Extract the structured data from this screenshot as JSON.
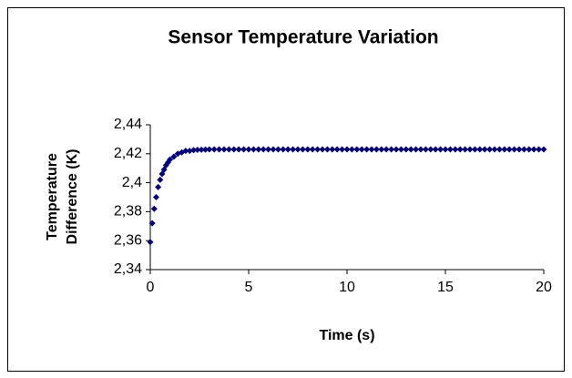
{
  "chart_data": {
    "type": "scatter",
    "title": "Sensor Temperature Variation",
    "xlabel": "Time (s)",
    "ylabel": [
      "Temperature",
      "Difference (K)"
    ],
    "series": [
      {
        "color": "#000080",
        "x": [
          0,
          0.1,
          0.2,
          0.3,
          0.4,
          0.5,
          0.6,
          0.7,
          0.8,
          0.9,
          1.0,
          1.2,
          1.4,
          1.6,
          1.8,
          2.0,
          2.2,
          2.4,
          2.6,
          2.8,
          3.0,
          3.25,
          3.5,
          3.75,
          4,
          4.25,
          4.5,
          4.75,
          5,
          5.25,
          5.5,
          5.75,
          6,
          6.25,
          6.5,
          6.75,
          7,
          7.25,
          7.5,
          7.75,
          8,
          8.25,
          8.5,
          8.75,
          9,
          9.25,
          9.5,
          9.75,
          10,
          10.25,
          10.5,
          10.75,
          11,
          11.25,
          11.5,
          11.75,
          12,
          12.25,
          12.5,
          12.75,
          13,
          13.25,
          13.5,
          13.75,
          14,
          14.25,
          14.5,
          14.75,
          15,
          15.25,
          15.5,
          15.75,
          16,
          16.25,
          16.5,
          16.75,
          17,
          17.25,
          17.5,
          17.75,
          18,
          18.25,
          18.5,
          18.75,
          19,
          19.25,
          19.5,
          19.75,
          20
        ],
        "values": [
          2.359,
          2.372,
          2.382,
          2.39,
          2.397,
          2.402,
          2.406,
          2.409,
          2.412,
          2.414,
          2.416,
          2.418,
          2.42,
          2.421,
          2.422,
          2.422,
          2.4225,
          2.4227,
          2.4228,
          2.4229,
          2.423,
          2.423,
          2.423,
          2.423,
          2.423,
          2.423,
          2.423,
          2.423,
          2.423,
          2.423,
          2.423,
          2.423,
          2.423,
          2.423,
          2.423,
          2.423,
          2.423,
          2.423,
          2.423,
          2.423,
          2.423,
          2.423,
          2.423,
          2.423,
          2.423,
          2.423,
          2.423,
          2.423,
          2.423,
          2.423,
          2.423,
          2.423,
          2.423,
          2.423,
          2.423,
          2.423,
          2.423,
          2.423,
          2.423,
          2.423,
          2.423,
          2.423,
          2.423,
          2.423,
          2.423,
          2.423,
          2.423,
          2.423,
          2.423,
          2.423,
          2.423,
          2.423,
          2.423,
          2.423,
          2.423,
          2.423,
          2.423,
          2.423,
          2.423,
          2.423,
          2.423,
          2.423,
          2.423,
          2.423,
          2.423,
          2.423,
          2.423,
          2.423,
          2.423
        ]
      }
    ],
    "xlim": [
      0,
      20
    ],
    "xticks": [
      0,
      5,
      10,
      15,
      20
    ],
    "ylim": [
      2.34,
      2.44
    ],
    "yticks": [
      {
        "value": 2.34,
        "label": "2,34"
      },
      {
        "value": 2.36,
        "label": "2,36"
      },
      {
        "value": 2.38,
        "label": "2,38"
      },
      {
        "value": 2.4,
        "label": "2,4"
      },
      {
        "value": 2.42,
        "label": "2,42"
      },
      {
        "value": 2.44,
        "label": "2,44"
      }
    ]
  }
}
